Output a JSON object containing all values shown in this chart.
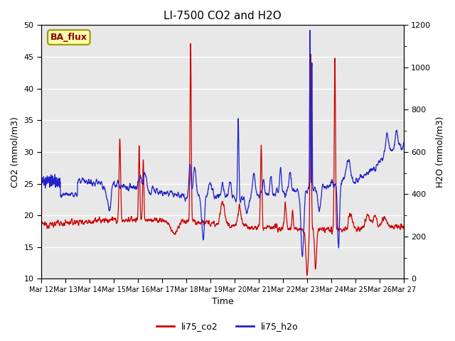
{
  "title": "LI-7500 CO2 and H2O",
  "xlabel": "Time",
  "ylabel_left": "CO2 (mmol/m3)",
  "ylabel_right": "H2O (mmol/m3)",
  "ylim_left": [
    10,
    50
  ],
  "ylim_right": [
    0,
    1200
  ],
  "fig_bg_color": "#ffffff",
  "plot_bg_color": "#e8e8e8",
  "legend_label_co2": "li75_co2",
  "legend_label_h2o": "li75_h2o",
  "co2_color": "#cc0000",
  "h2o_color": "#2222cc",
  "annotation_text": "BA_flux",
  "annotation_bg": "#ffffaa",
  "annotation_border": "#999900",
  "xtick_labels": [
    "Mar 12",
    "Mar 13",
    "Mar 14",
    "Mar 15",
    "Mar 16",
    "Mar 17",
    "Mar 18",
    "Mar 19",
    "Mar 20",
    "Mar 21",
    "Mar 22",
    "Mar 23",
    "Mar 24",
    "Mar 25",
    "Mar 26",
    "Mar 27"
  ],
  "yticks_left": [
    10,
    15,
    20,
    25,
    30,
    35,
    40,
    45,
    50
  ],
  "yticks_right": [
    0,
    200,
    400,
    600,
    800,
    1000,
    1200
  ],
  "grid_color": "#ffffff",
  "linewidth": 0.9
}
